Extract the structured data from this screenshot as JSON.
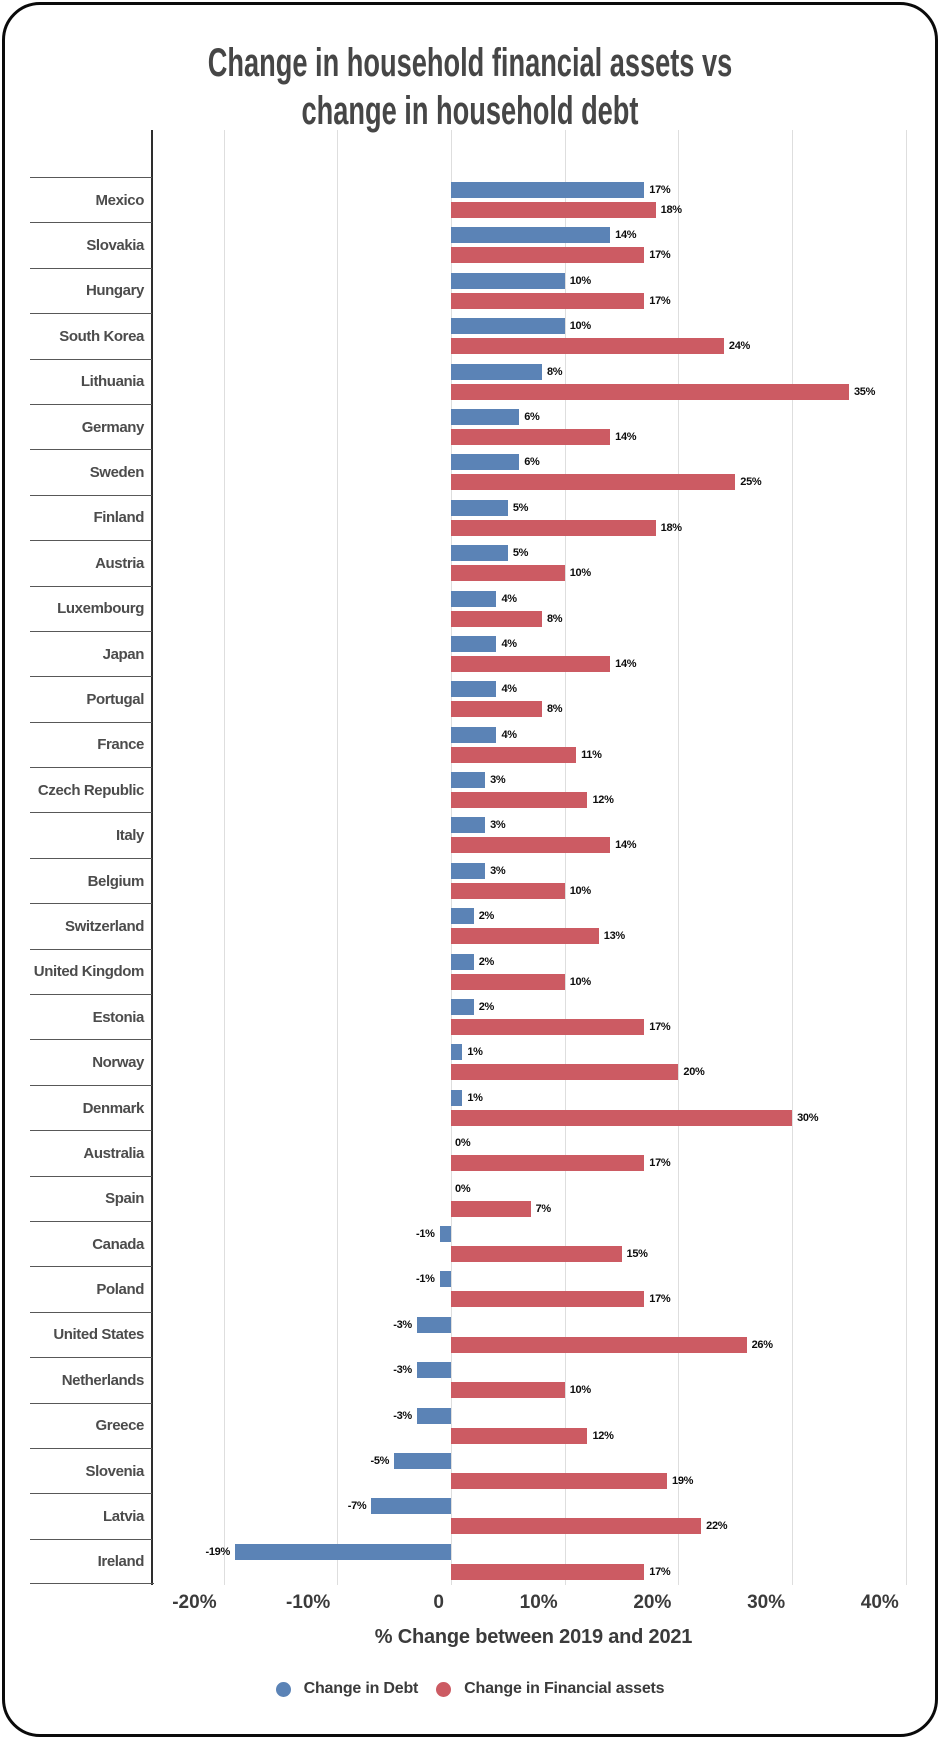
{
  "chart_data": {
    "type": "bar",
    "orientation": "horizontal",
    "title": "Change in household financial assets vs\nchange in household debt",
    "xlabel": "% Change between 2019 and 2021",
    "value_suffix": "%",
    "xlim": [
      -26,
      41
    ],
    "grid": true,
    "legend_position": "bottom",
    "x_ticks": [
      {
        "value": -20,
        "label": "-20%"
      },
      {
        "value": -10,
        "label": "-10%"
      },
      {
        "value": 0,
        "label": "0"
      },
      {
        "value": 10,
        "label": "10%"
      },
      {
        "value": 20,
        "label": "20%"
      },
      {
        "value": 30,
        "label": "30%"
      },
      {
        "value": 40,
        "label": "40%"
      }
    ],
    "categories": [
      "Mexico",
      "Slovakia",
      "Hungary",
      "South Korea",
      "Lithuania",
      "Germany",
      "Sweden",
      "Finland",
      "Austria",
      "Luxembourg",
      "Japan",
      "Portugal",
      "France",
      "Czech Republic",
      "Italy",
      "Belgium",
      "Switzerland",
      "United Kingdom",
      "Estonia",
      "Norway",
      "Denmark",
      "Australia",
      "Spain",
      "Canada",
      "Poland",
      "United States",
      "Netherlands",
      "Greece",
      "Slovenia",
      "Latvia",
      "Ireland"
    ],
    "series": [
      {
        "name": "Change in Debt",
        "color": "#5B83B6",
        "values": [
          17,
          14,
          10,
          10,
          8,
          6,
          6,
          5,
          5,
          4,
          4,
          4,
          4,
          3,
          3,
          3,
          2,
          2,
          2,
          1,
          1,
          0,
          0,
          -1,
          -1,
          -3,
          -3,
          -3,
          -5,
          -7,
          -19
        ]
      },
      {
        "name": "Change in Financial assets",
        "color": "#CC5B63",
        "values": [
          18,
          17,
          17,
          24,
          35,
          14,
          25,
          18,
          10,
          8,
          14,
          8,
          11,
          12,
          14,
          10,
          13,
          10,
          17,
          20,
          30,
          17,
          7,
          15,
          17,
          26,
          10,
          12,
          19,
          22,
          17
        ]
      }
    ]
  },
  "colors": {
    "grid": "#dedede",
    "axis": "#2e2e2e",
    "separator": "#585858",
    "title_text": "#464646",
    "label_text": "#4c4c4c",
    "value_text": "#0d0d0d"
  }
}
